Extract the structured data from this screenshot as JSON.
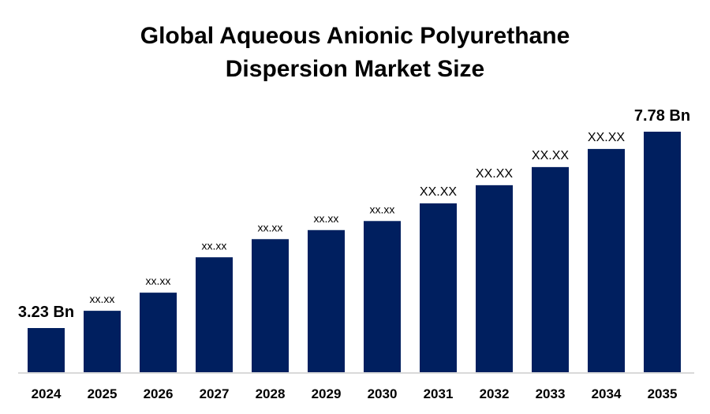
{
  "chart_data": {
    "type": "bar",
    "title": "Global Aqueous Anionic Polyurethane Dispersion Market Size",
    "title_lines": [
      "Global Aqueous Anionic Polyurethane",
      "Dispersion Market Size"
    ],
    "xlabel": "",
    "ylabel": "",
    "categories": [
      "2024",
      "2025",
      "2026",
      "2027",
      "2028",
      "2029",
      "2030",
      "2031",
      "2032",
      "2033",
      "2034",
      "2035"
    ],
    "values": [
      3.23,
      3.63,
      4.05,
      4.87,
      5.29,
      5.5,
      5.71,
      6.12,
      6.54,
      6.96,
      7.38,
      7.78
    ],
    "data_labels": [
      "3.23 Bn",
      "xx.xx",
      "xx.xx",
      "xx.xx",
      "xx.xx",
      "xx.xx",
      "xx.xx",
      "XX.XX",
      "XX.XX",
      "XX.XX",
      "XX.XX",
      "7.78 Bn"
    ],
    "unit": "Bn",
    "grid": false,
    "legend": "none",
    "bar_color": "#001F5F",
    "axis_color": "#D9D9D9"
  }
}
